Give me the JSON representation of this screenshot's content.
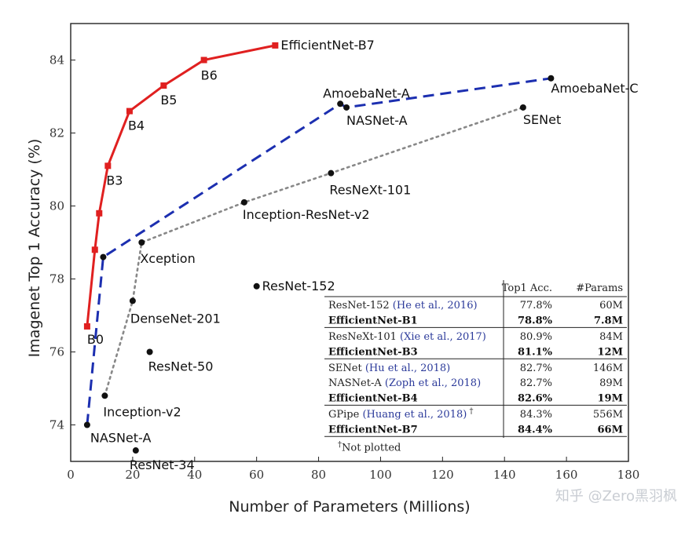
{
  "chart_data": {
    "type": "line",
    "xlabel": "Number of Parameters (Millions)",
    "ylabel": "Imagenet Top 1 Accuracy (%)",
    "xlim": [
      0,
      180
    ],
    "ylim": [
      73,
      85
    ],
    "xticks": [
      0,
      20,
      40,
      60,
      80,
      100,
      120,
      140,
      160,
      180
    ],
    "yticks": [
      74,
      76,
      78,
      80,
      82,
      84
    ],
    "series": [
      {
        "key": "efficientnet",
        "style": "solid",
        "color": "#e02020",
        "marker": "square",
        "points": [
          {
            "x": 5.3,
            "y": 76.7,
            "label": "B0"
          },
          {
            "x": 7.8,
            "y": 78.8,
            "label": ""
          },
          {
            "x": 9.2,
            "y": 79.8,
            "label": ""
          },
          {
            "x": 12,
            "y": 81.1,
            "label": "B3"
          },
          {
            "x": 19,
            "y": 82.6,
            "label": "B4"
          },
          {
            "x": 30,
            "y": 83.3,
            "label": "B5"
          },
          {
            "x": 43,
            "y": 84.0,
            "label": "B6"
          },
          {
            "x": 66,
            "y": 84.4,
            "label": "EfficientNet-B7"
          }
        ]
      },
      {
        "key": "nas",
        "style": "dashed",
        "color": "#1c2fb0",
        "marker": "circle",
        "points": [
          {
            "x": 5.3,
            "y": 74.0,
            "label": "NASNet-A"
          },
          {
            "x": 10.5,
            "y": 78.6,
            "label": ""
          },
          {
            "x": 87,
            "y": 82.8,
            "label": "AmoebaNet-A"
          },
          {
            "x": 89,
            "y": 82.7,
            "label": "NASNet-A"
          },
          {
            "x": 155,
            "y": 83.5,
            "label": "AmoebaNet-C"
          }
        ]
      },
      {
        "key": "handcrafted",
        "style": "dotted",
        "color": "#888888",
        "marker": "circle",
        "points": [
          {
            "x": 11,
            "y": 74.8,
            "label": "Inception-v2"
          },
          {
            "x": 20,
            "y": 77.4,
            "label": "DenseNet-201"
          },
          {
            "x": 22.9,
            "y": 79.0,
            "label": "Xception"
          },
          {
            "x": 56,
            "y": 80.1,
            "label": "Inception-ResNet-v2"
          },
          {
            "x": 84,
            "y": 80.9,
            "label": "ResNeXt-101"
          },
          {
            "x": 146,
            "y": 82.7,
            "label": "SENet"
          }
        ]
      }
    ],
    "standalone_points": [
      {
        "x": 25.5,
        "y": 76.0,
        "label": "ResNet-50"
      },
      {
        "x": 60,
        "y": 77.8,
        "label": "ResNet-152"
      },
      {
        "x": 21,
        "y": 73.3,
        "label": "ResNet-34"
      }
    ],
    "table": {
      "headers": [
        "Top1 Acc.",
        "#Params"
      ],
      "rows": [
        {
          "model": "ResNet-152 ",
          "cite": "(He et al., 2016)",
          "acc": "77.8%",
          "params": "60M",
          "bold": false
        },
        {
          "model": "EfficientNet-B1",
          "cite": "",
          "acc": "78.8%",
          "params": "7.8M",
          "bold": true
        },
        {
          "model": "ResNeXt-101 ",
          "cite": "(Xie et al., 2017)",
          "acc": "80.9%",
          "params": "84M",
          "bold": false
        },
        {
          "model": "EfficientNet-B3",
          "cite": "",
          "acc": "81.1%",
          "params": "12M",
          "bold": true
        },
        {
          "model": "SENet ",
          "cite": "(Hu et al., 2018)",
          "acc": "82.7%",
          "params": "146M",
          "bold": false
        },
        {
          "model": "NASNet-A ",
          "cite": "(Zoph et al., 2018)",
          "acc": "82.7%",
          "params": "89M",
          "bold": false
        },
        {
          "model": "EfficientNet-B4",
          "cite": "",
          "acc": "82.6%",
          "params": "19M",
          "bold": true
        },
        {
          "model": "GPipe ",
          "cite": "(Huang et al., 2018)",
          "acc": "84.3%",
          "params": "556M",
          "bold": false,
          "dagger": "†"
        },
        {
          "model": "EfficientNet-B7",
          "cite": "",
          "acc": "84.4%",
          "params": "66M",
          "bold": true
        }
      ],
      "footnote_mark": "†",
      "footnote": "Not plotted"
    },
    "watermark": "知乎 @Zero黑羽枫"
  }
}
